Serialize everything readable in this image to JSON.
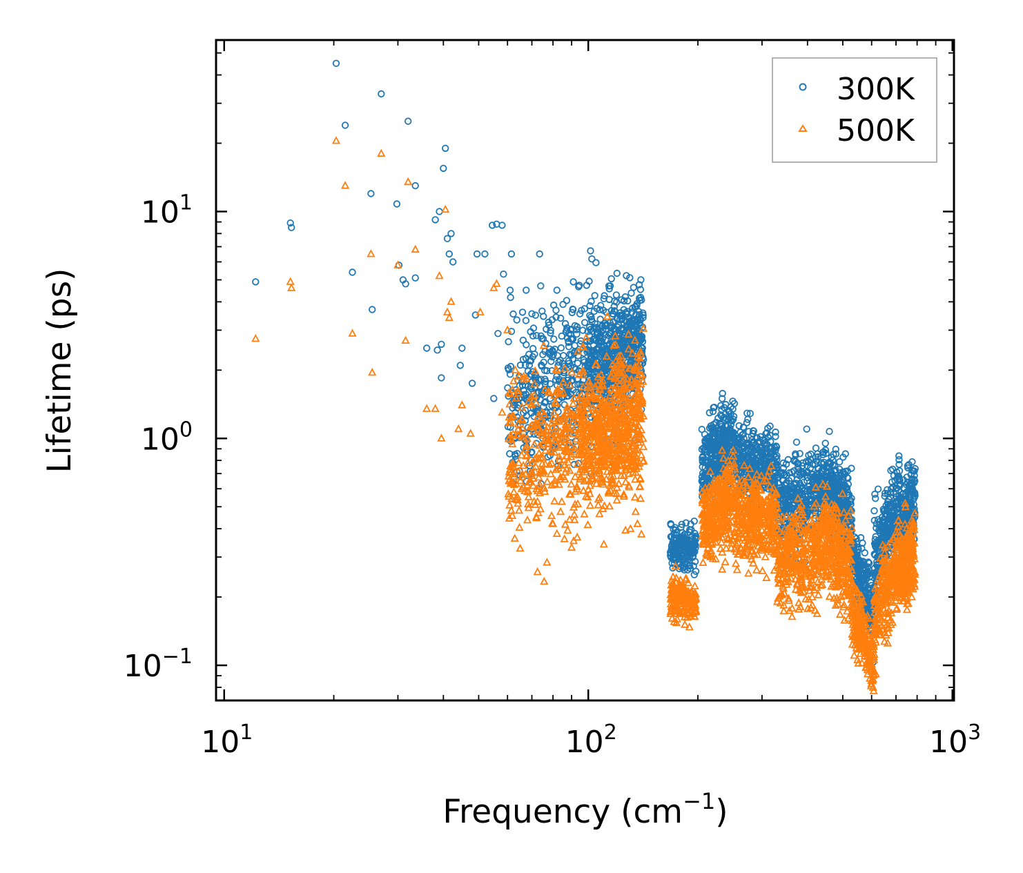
{
  "chart_data": {
    "type": "scatter",
    "title": "",
    "xlabel": "Frequency (cm",
    "xlabel_sup": "−1",
    "xlabel_end": ")",
    "ylabel": "Lifetime (ps)",
    "xscale": "log",
    "yscale": "log",
    "xlim": [
      9.5,
      1010
    ],
    "ylim": [
      0.07,
      57
    ],
    "xticks": [
      {
        "value": 10,
        "base": "10",
        "exp": "1"
      },
      {
        "value": 100,
        "base": "10",
        "exp": "2"
      },
      {
        "value": 1000,
        "base": "10",
        "exp": "3"
      }
    ],
    "yticks": [
      {
        "value": 0.1,
        "base": "10",
        "exp": "−1"
      },
      {
        "value": 1,
        "base": "10",
        "exp": "0"
      },
      {
        "value": 10,
        "base": "10",
        "exp": "1"
      }
    ],
    "legend": {
      "placement": "top-right",
      "entries": [
        "300K",
        "500K"
      ]
    },
    "colors": {
      "300K": "#1f77b4",
      "500K": "#ff7f0e"
    },
    "series": [
      {
        "name": "300K",
        "marker": "circle",
        "color": "#1f77b4",
        "points": [
          [
            12.2,
            4.9
          ],
          [
            15.2,
            8.9
          ],
          [
            15.3,
            8.5
          ],
          [
            20.3,
            45
          ],
          [
            21.5,
            24
          ],
          [
            25.5,
            3.7
          ],
          [
            25.3,
            12
          ],
          [
            27,
            33
          ],
          [
            22.5,
            5.4
          ],
          [
            29.8,
            10.8
          ],
          [
            30.2,
            5.8
          ],
          [
            31,
            5.0
          ],
          [
            32,
            25
          ],
          [
            33.5,
            13
          ],
          [
            33.5,
            5.1
          ],
          [
            31.5,
            4.8
          ],
          [
            36,
            2.5
          ],
          [
            38,
            9.2
          ],
          [
            39,
            10
          ],
          [
            40,
            15.5
          ],
          [
            40.5,
            19
          ],
          [
            41,
            7.6
          ],
          [
            42,
            8
          ],
          [
            42.5,
            6
          ],
          [
            41.5,
            6.5
          ],
          [
            38.5,
            2.45
          ],
          [
            39.5,
            2.6
          ],
          [
            39.5,
            1.85
          ],
          [
            44.5,
            2.1
          ],
          [
            45,
            2.5
          ],
          [
            48,
            1.75
          ],
          [
            49,
            3.5
          ],
          [
            49.5,
            6.5
          ],
          [
            52,
            6.5
          ],
          [
            54.5,
            8.7
          ],
          [
            56,
            8.8
          ],
          [
            58,
            8.7
          ],
          [
            56.5,
            2.9
          ],
          [
            58.5,
            5.3
          ],
          [
            61,
            4.5
          ],
          [
            61.5,
            6.5
          ],
          [
            66,
            3.6
          ],
          [
            67.5,
            4.5
          ],
          [
            73.5,
            6.5
          ],
          [
            74,
            4.7
          ],
          [
            82,
            4.5
          ],
          [
            91,
            4.9
          ],
          [
            55,
            1.5
          ],
          [
            63,
            1.3
          ],
          [
            70,
            1.1
          ],
          [
            75,
            1.0
          ],
          [
            80,
            0.9
          ],
          [
            68,
            0.88
          ],
          [
            72,
            0.95
          ]
        ],
        "clusters": [
          {
            "x": [
              60,
              140
            ],
            "y_center": [
              1.4,
              2.6
            ],
            "y_spread": 1.5,
            "n": 650
          },
          {
            "x": [
              100,
              142
            ],
            "y_center": [
              2.2,
              2.6
            ],
            "y_spread": 1.25,
            "n": 350
          },
          {
            "x": [
              168,
              198
            ],
            "y_center": [
              0.33,
              0.33
            ],
            "y_spread": 1.12,
            "n": 180
          },
          {
            "x": [
              205,
              252
            ],
            "y_center": [
              0.75,
              1.0
            ],
            "y_spread": 1.22,
            "n": 340
          },
          {
            "x": [
              252,
              330
            ],
            "y_center": [
              0.8,
              0.75
            ],
            "y_spread": 1.22,
            "n": 360
          },
          {
            "x": [
              330,
              440
            ],
            "y_center": [
              0.5,
              0.6
            ],
            "y_spread": 1.25,
            "n": 360
          },
          {
            "x": [
              440,
              530
            ],
            "y_center": [
              0.65,
              0.45
            ],
            "y_spread": 1.25,
            "n": 300
          },
          {
            "x": [
              530,
              610
            ],
            "y_center": [
              0.3,
              0.17
            ],
            "y_spread": 1.2,
            "n": 220
          },
          {
            "x": [
              610,
              720
            ],
            "y_center": [
              0.3,
              0.55
            ],
            "y_spread": 1.25,
            "n": 260
          },
          {
            "x": [
              720,
              790
            ],
            "y_center": [
              0.42,
              0.55
            ],
            "y_spread": 1.25,
            "n": 200
          }
        ]
      },
      {
        "name": "500K",
        "marker": "triangle",
        "color": "#ff7f0e",
        "points": [
          [
            12.2,
            2.75
          ],
          [
            15.2,
            4.9
          ],
          [
            15.3,
            4.6
          ],
          [
            20.3,
            20.5
          ],
          [
            21.5,
            13
          ],
          [
            25.3,
            6.5
          ],
          [
            25.5,
            1.95
          ],
          [
            27,
            18
          ],
          [
            22.5,
            2.9
          ],
          [
            30,
            5.8
          ],
          [
            31.5,
            2.7
          ],
          [
            32,
            13.5
          ],
          [
            33.5,
            6.8
          ],
          [
            36,
            1.35
          ],
          [
            38,
            1.35
          ],
          [
            39,
            5.2
          ],
          [
            40.5,
            10.2
          ],
          [
            41,
            3.6
          ],
          [
            42,
            4.0
          ],
          [
            41.5,
            3.4
          ],
          [
            39.5,
            1.0
          ],
          [
            44,
            1.1
          ],
          [
            45,
            1.4
          ],
          [
            47.5,
            1.05
          ],
          [
            50.5,
            3.6
          ],
          [
            55,
            4.6
          ],
          [
            56,
            4.8
          ],
          [
            58,
            1.3
          ],
          [
            60,
            3.0
          ],
          [
            63,
            2.0
          ],
          [
            66,
            1.2
          ],
          [
            70,
            0.78
          ],
          [
            75,
            0.7
          ],
          [
            68,
            0.58
          ],
          [
            72,
            0.45
          ],
          [
            80,
            0.42
          ],
          [
            82,
            0.38
          ],
          [
            90,
            0.33
          ],
          [
            86,
            0.36
          ]
        ],
        "clusters": [
          {
            "x": [
              60,
              140
            ],
            "y_center": [
              0.8,
              1.2
            ],
            "y_spread": 1.55,
            "n": 650
          },
          {
            "x": [
              95,
              142
            ],
            "y_center": [
              0.9,
              1.2
            ],
            "y_spread": 1.35,
            "n": 350
          },
          {
            "x": [
              168,
              198
            ],
            "y_center": [
              0.2,
              0.19
            ],
            "y_spread": 1.12,
            "n": 180
          },
          {
            "x": [
              205,
              252
            ],
            "y_center": [
              0.4,
              0.55
            ],
            "y_spread": 1.25,
            "n": 340
          },
          {
            "x": [
              252,
              330
            ],
            "y_center": [
              0.45,
              0.42
            ],
            "y_spread": 1.25,
            "n": 360
          },
          {
            "x": [
              330,
              440
            ],
            "y_center": [
              0.28,
              0.32
            ],
            "y_spread": 1.3,
            "n": 360
          },
          {
            "x": [
              440,
              530
            ],
            "y_center": [
              0.38,
              0.25
            ],
            "y_spread": 1.3,
            "n": 300
          },
          {
            "x": [
              530,
              610
            ],
            "y_center": [
              0.17,
              0.1
            ],
            "y_spread": 1.2,
            "n": 220
          },
          {
            "x": [
              610,
              720
            ],
            "y_center": [
              0.17,
              0.3
            ],
            "y_spread": 1.25,
            "n": 260
          },
          {
            "x": [
              720,
              790
            ],
            "y_center": [
              0.26,
              0.32
            ],
            "y_spread": 1.25,
            "n": 200
          }
        ]
      }
    ]
  }
}
